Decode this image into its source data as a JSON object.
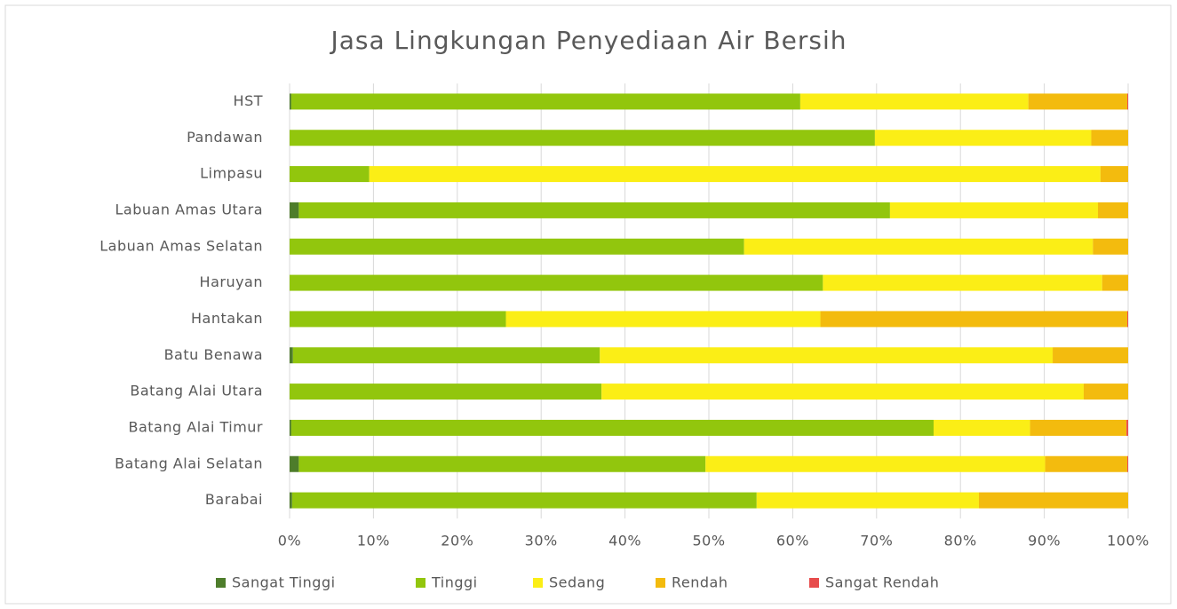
{
  "chart_data": {
    "type": "stacked_bar_horizontal",
    "title": "Jasa Lingkungan Penyediaan Air Bersih",
    "categories": [
      "HST",
      "Pandawan",
      "Limpasu",
      "Labuan Amas Utara",
      "Labuan Amas Selatan",
      "Haruyan",
      "Hantakan",
      "Batu Benawa",
      "Batang Alai Utara",
      "Batang Alai Timur",
      "Batang Alai Selatan",
      "Barabai"
    ],
    "series": [
      {
        "name": "Sangat Tinggi",
        "color": "#4e7d2b",
        "values": [
          0.2,
          0,
          0,
          1.1,
          0,
          0,
          0,
          0.4,
          0,
          0.2,
          1.1,
          0.3
        ]
      },
      {
        "name": "Tinggi",
        "color": "#92c60d",
        "values": [
          60.7,
          69.8,
          9.5,
          70.5,
          54.2,
          63.6,
          25.8,
          36.6,
          37.2,
          76.6,
          48.5,
          55.4
        ]
      },
      {
        "name": "Sedang",
        "color": "#fbee16",
        "values": [
          27.2,
          25.8,
          87.2,
          24.8,
          41.6,
          33.3,
          37.5,
          54.0,
          57.5,
          11.5,
          40.5,
          26.5
        ]
      },
      {
        "name": "Rendah",
        "color": "#f3bb0e",
        "values": [
          11.8,
          4.4,
          3.3,
          3.6,
          4.2,
          3.1,
          36.6,
          9.0,
          5.3,
          11.5,
          9.8,
          17.8
        ]
      },
      {
        "name": "Sangat Rendah",
        "color": "#e74c4c",
        "values": [
          0.1,
          0,
          0,
          0,
          0,
          0,
          0.1,
          0,
          0,
          0.2,
          0.1,
          0
        ]
      }
    ],
    "xlim": [
      0,
      100
    ],
    "xticks": [
      {
        "value": 0,
        "label": "0%"
      },
      {
        "value": 10,
        "label": "10%"
      },
      {
        "value": 20,
        "label": "20%"
      },
      {
        "value": 30,
        "label": "30%"
      },
      {
        "value": 40,
        "label": "40%"
      },
      {
        "value": 50,
        "label": "50%"
      },
      {
        "value": 60,
        "label": "60%"
      },
      {
        "value": 70,
        "label": "70%"
      },
      {
        "value": 80,
        "label": "80%"
      },
      {
        "value": 90,
        "label": "90%"
      },
      {
        "value": 100,
        "label": "100%"
      }
    ],
    "grid": true,
    "legend": "bottom"
  }
}
